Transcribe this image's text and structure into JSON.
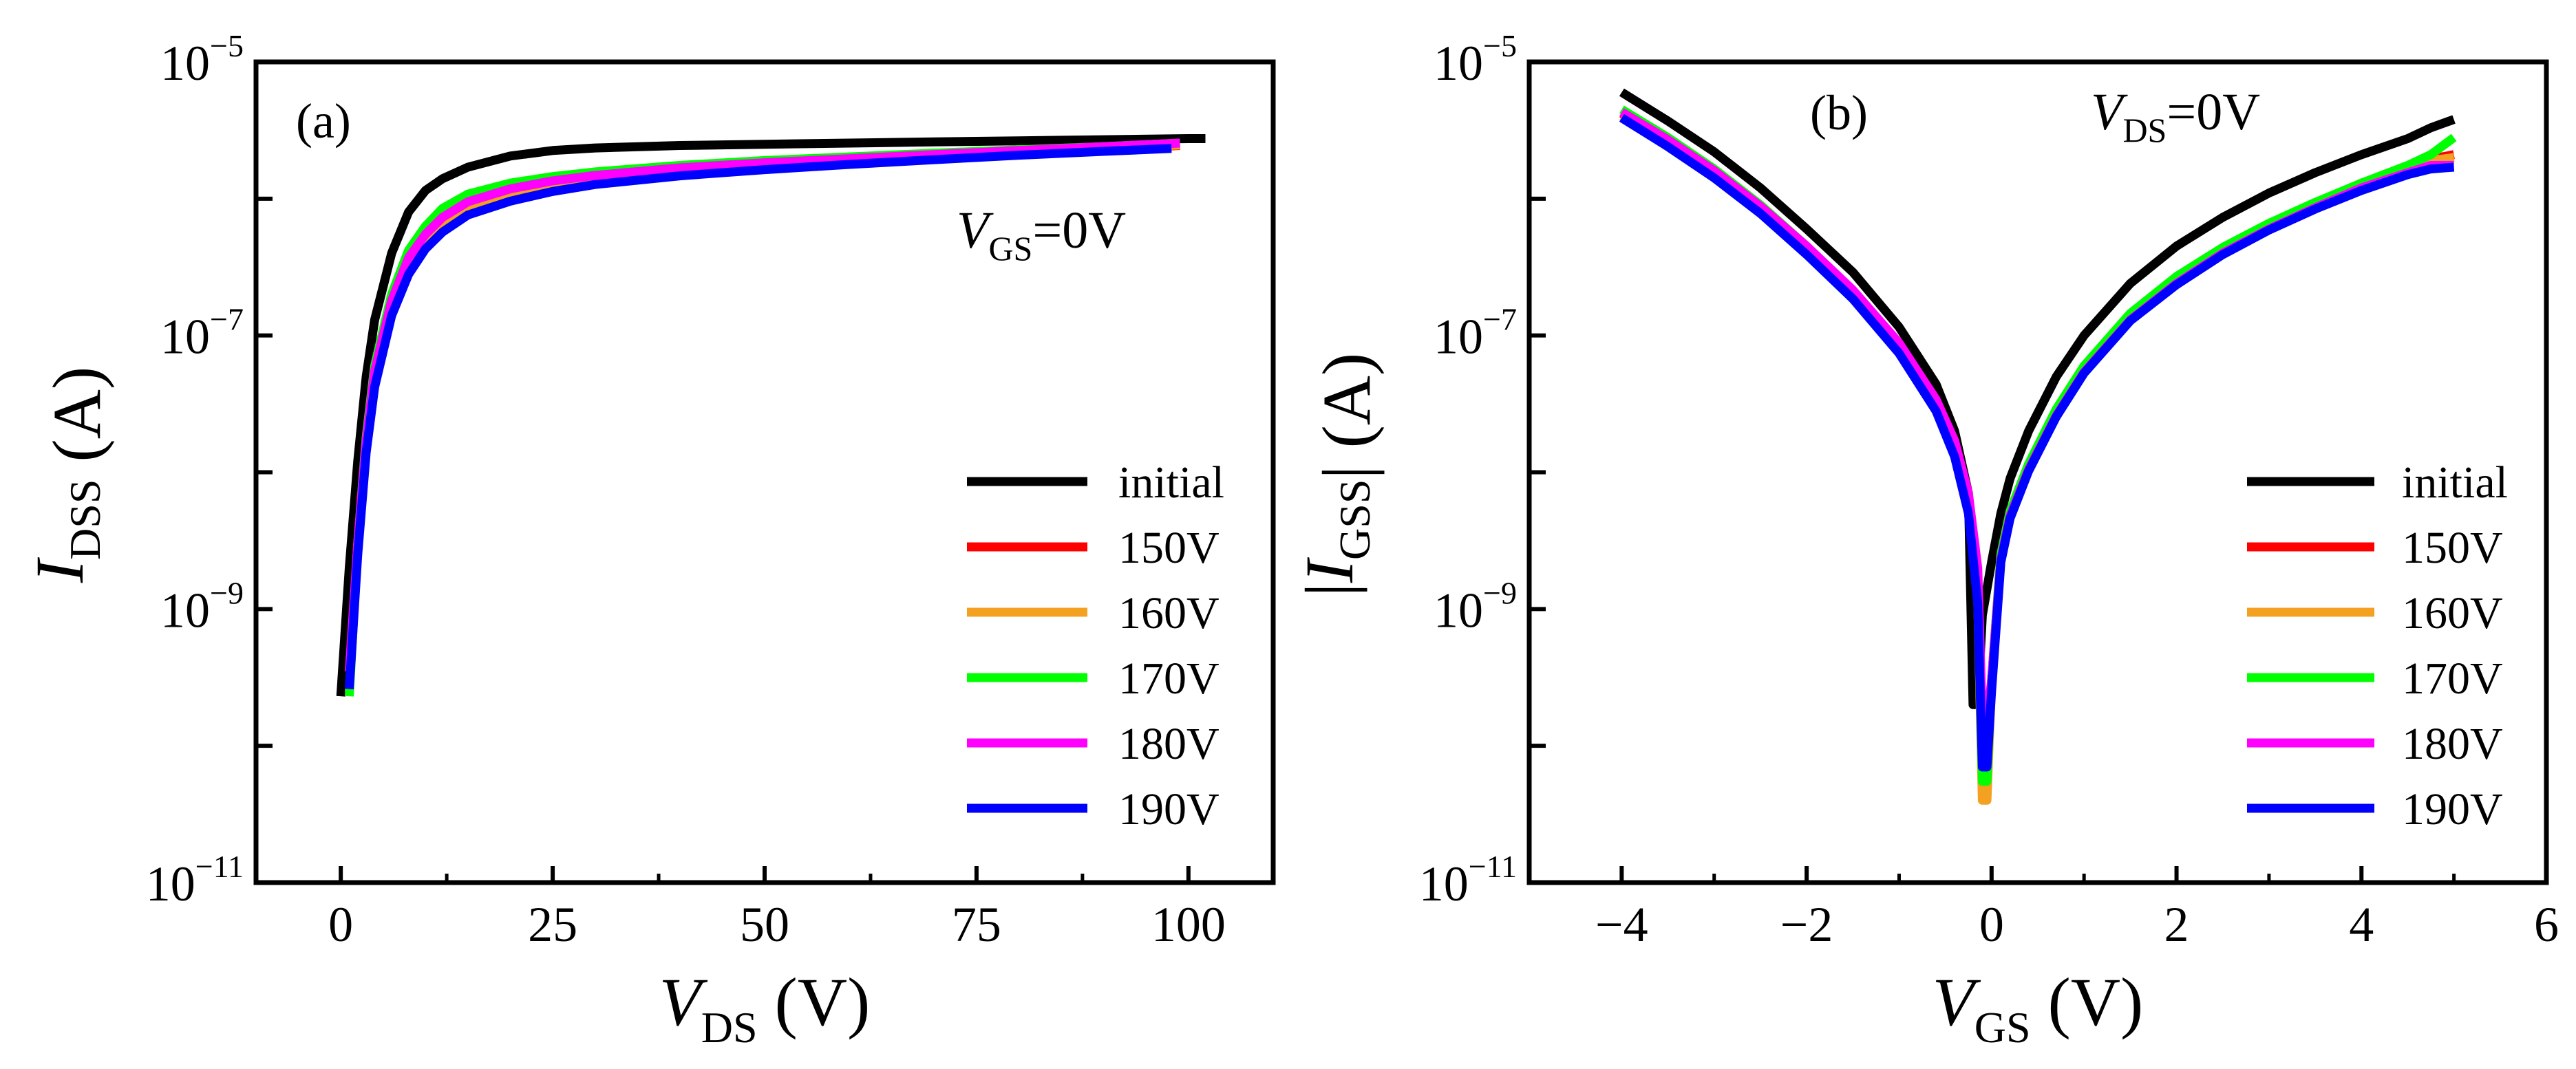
{
  "chart_data": [
    {
      "panel_label": "(a)",
      "type": "line",
      "title": "",
      "xlabel": {
        "symbol": "V",
        "sub": "DS",
        "unit": " (V)"
      },
      "ylabel": {
        "symbol": "I",
        "sub": "DSS",
        "unit": " (A)"
      },
      "condition": {
        "symbol": "V",
        "sub": "GS",
        "value": "=0V"
      },
      "xlim": [
        -10,
        110
      ],
      "ylim_log10": [
        -11,
        -5
      ],
      "yscale": "log",
      "xticks": [
        0,
        25,
        50,
        75,
        100
      ],
      "xtick_labels": [
        "0",
        "25",
        "50",
        "75",
        "100"
      ],
      "yticks": [
        {
          "value": 1e-11,
          "base": "10",
          "exp": "−11"
        },
        {
          "value": 1e-09,
          "base": "10",
          "exp": "−9"
        },
        {
          "value": 1e-07,
          "base": "10",
          "exp": "−7"
        },
        {
          "value": 1e-05,
          "base": "10",
          "exp": "−5"
        }
      ],
      "legend_position": "bottom-right",
      "series": [
        {
          "name": "initial",
          "color": "#000000",
          "x": [
            0,
            1,
            2,
            3,
            4,
            6,
            8,
            10,
            12,
            15,
            20,
            25,
            30,
            40,
            50,
            60,
            70,
            80,
            90,
            100,
            102
          ],
          "y": [
            2.3e-10,
            2e-09,
            1.2e-08,
            5e-08,
            1.3e-07,
            4e-07,
            8e-07,
            1.15e-06,
            1.4e-06,
            1.7e-06,
            2.05e-06,
            2.25e-06,
            2.35e-06,
            2.45e-06,
            2.5e-06,
            2.55e-06,
            2.6e-06,
            2.65e-06,
            2.7e-06,
            2.75e-06,
            2.75e-06
          ]
        },
        {
          "name": "150V",
          "color": "#ff0000",
          "x": [
            1,
            2,
            3,
            4,
            6,
            8,
            10,
            12,
            15,
            20,
            25,
            30,
            40,
            50,
            60,
            70,
            80,
            90,
            99
          ],
          "y": [
            2.5e-10,
            3e-09,
            1.5e-08,
            4.5e-08,
            1.5e-07,
            3e-07,
            4.5e-07,
            6e-07,
            8e-07,
            1.02e-06,
            1.2e-06,
            1.35e-06,
            1.55e-06,
            1.7e-06,
            1.85e-06,
            2e-06,
            2.15e-06,
            2.3e-06,
            2.45e-06
          ]
        },
        {
          "name": "160V",
          "color": "#f4a020",
          "x": [
            1,
            2,
            3,
            4,
            6,
            8,
            10,
            12,
            15,
            20,
            25,
            30,
            40,
            50,
            60,
            70,
            80,
            90,
            99
          ],
          "y": [
            2.5e-10,
            3e-09,
            1.6e-08,
            5e-08,
            1.6e-07,
            3.2e-07,
            4.8e-07,
            6.3e-07,
            8.4e-07,
            1.07e-06,
            1.24e-06,
            1.38e-06,
            1.58e-06,
            1.73e-06,
            1.88e-06,
            2.03e-06,
            2.18e-06,
            2.33e-06,
            2.47e-06
          ]
        },
        {
          "name": "170V",
          "color": "#00ff00",
          "x": [
            1,
            2,
            3,
            4,
            6,
            8,
            10,
            12,
            15,
            20,
            25,
            30,
            40,
            50,
            60,
            70,
            80,
            90,
            99
          ],
          "y": [
            2.3e-10,
            3e-09,
            1.8e-08,
            6e-08,
            2e-07,
            4.2e-07,
            6.3e-07,
            8.5e-07,
            1.08e-06,
            1.3e-06,
            1.45e-06,
            1.57e-06,
            1.75e-06,
            1.9e-06,
            2.02e-06,
            2.15e-06,
            2.28e-06,
            2.4e-06,
            2.55e-06
          ]
        },
        {
          "name": "180V",
          "color": "#ff00ff",
          "x": [
            1,
            2,
            3,
            4,
            6,
            8,
            10,
            12,
            15,
            20,
            25,
            30,
            40,
            50,
            60,
            70,
            80,
            90,
            99
          ],
          "y": [
            3.5e-10,
            3e-09,
            1.7e-08,
            5.5e-08,
            1.8e-07,
            3.7e-07,
            5.5e-07,
            7.3e-07,
            9.5e-07,
            1.18e-06,
            1.35e-06,
            1.48e-06,
            1.68e-06,
            1.83e-06,
            1.96e-06,
            2.1e-06,
            2.25e-06,
            2.4e-06,
            2.55e-06
          ]
        },
        {
          "name": "190V",
          "color": "#0000ff",
          "x": [
            1,
            2,
            3,
            4,
            6,
            8,
            10,
            12,
            15,
            20,
            25,
            30,
            40,
            50,
            60,
            70,
            80,
            90,
            98
          ],
          "y": [
            2.6e-10,
            2.5e-09,
            1.4e-08,
            4.2e-08,
            1.4e-07,
            2.8e-07,
            4.3e-07,
            5.7e-07,
            7.6e-07,
            9.6e-07,
            1.13e-06,
            1.27e-06,
            1.47e-06,
            1.63e-06,
            1.78e-06,
            1.93e-06,
            2.08e-06,
            2.22e-06,
            2.33e-06
          ]
        }
      ]
    },
    {
      "panel_label": "(b)",
      "type": "line",
      "title": "",
      "xlabel": {
        "symbol": "V",
        "sub": "GS",
        "unit": " (V)"
      },
      "ylabel": {
        "symbol": "I",
        "sub": "GSS",
        "unit": " (A)",
        "abs": true
      },
      "condition": {
        "symbol": "V",
        "sub": "DS",
        "value": "=0V"
      },
      "xlim": [
        -5,
        6
      ],
      "ylim_log10": [
        -11,
        -5
      ],
      "yscale": "log",
      "xticks": [
        -4,
        -2,
        0,
        2,
        4,
        6
      ],
      "xtick_labels": [
        "−4",
        "−2",
        "0",
        "2",
        "4",
        "6"
      ],
      "yticks": [
        {
          "value": 1e-11,
          "base": "10",
          "exp": "−11"
        },
        {
          "value": 1e-09,
          "base": "10",
          "exp": "−9"
        },
        {
          "value": 1e-07,
          "base": "10",
          "exp": "−7"
        },
        {
          "value": 1e-05,
          "base": "10",
          "exp": "−5"
        }
      ],
      "legend_position": "bottom-right",
      "series": [
        {
          "name": "initial",
          "color": "#000000",
          "x": [
            -4,
            -3.5,
            -3,
            -2.5,
            -2,
            -1.5,
            -1,
            -0.6,
            -0.4,
            -0.25,
            -0.2,
            -0.15,
            -0.1,
            0,
            0.1,
            0.2,
            0.4,
            0.7,
            1,
            1.5,
            2,
            2.5,
            3,
            3.5,
            4,
            4.5,
            4.75,
            5
          ],
          "y": [
            6e-06,
            3.7e-06,
            2.2e-06,
            1.2e-06,
            6e-07,
            2.9e-07,
            1.15e-07,
            4.4e-08,
            2e-08,
            7e-09,
            2e-10,
            2e-10,
            9e-10,
            2.2e-09,
            5e-09,
            9e-09,
            2e-08,
            5e-08,
            1e-07,
            2.4e-07,
            4.5e-07,
            7.3e-07,
            1.1e-06,
            1.55e-06,
            2.1e-06,
            2.75e-06,
            3.3e-06,
            3.8e-06
          ]
        },
        {
          "name": "150V",
          "color": "#ff0000",
          "x": [
            -4,
            -3.5,
            -3,
            -2.5,
            -2,
            -1.5,
            -1,
            -0.6,
            -0.4,
            -0.25,
            -0.15,
            -0.1,
            -0.05,
            0,
            0.1,
            0.2,
            0.4,
            0.7,
            1,
            1.5,
            2,
            2.5,
            3,
            3.5,
            4,
            4.5,
            4.75,
            5
          ],
          "y": [
            4.2e-06,
            2.6e-06,
            1.55e-06,
            8.5e-07,
            4.3e-07,
            2e-07,
            8e-08,
            3e-08,
            1.4e-08,
            5.5e-09,
            1.2e-09,
            8e-11,
            8e-11,
            3e-10,
            2.4e-09,
            5e-09,
            1.1e-08,
            2.8e-08,
            5.8e-08,
            1.4e-07,
            2.6e-07,
            4.3e-07,
            6.5e-07,
            9.3e-07,
            1.3e-06,
            1.7e-06,
            1.95e-06,
            2.1e-06
          ]
        },
        {
          "name": "160V",
          "color": "#f4a020",
          "x": [
            -4,
            -3.5,
            -3,
            -2.5,
            -2,
            -1.5,
            -1,
            -0.6,
            -0.4,
            -0.25,
            -0.15,
            -0.1,
            -0.05,
            0,
            0.1,
            0.2,
            0.4,
            0.7,
            1,
            1.5,
            2,
            2.5,
            3,
            3.5,
            4,
            4.5,
            4.75,
            5
          ],
          "y": [
            4e-06,
            2.5e-06,
            1.5e-06,
            8.2e-07,
            4.1e-07,
            1.95e-07,
            7.8e-08,
            2.9e-08,
            1.35e-08,
            5.3e-09,
            1.2e-09,
            4e-11,
            4e-11,
            3e-10,
            2.3e-09,
            4.9e-09,
            1.08e-08,
            2.7e-08,
            5.6e-08,
            1.35e-07,
            2.5e-07,
            4.2e-07,
            6.3e-07,
            9e-07,
            1.25e-06,
            1.65e-06,
            1.9e-06,
            2e-06
          ]
        },
        {
          "name": "170V",
          "color": "#00ff00",
          "x": [
            -4,
            -3.5,
            -3,
            -2.5,
            -2,
            -1.5,
            -1,
            -0.6,
            -0.4,
            -0.25,
            -0.15,
            -0.1,
            -0.05,
            0,
            0.1,
            0.2,
            0.4,
            0.7,
            1,
            1.5,
            2,
            2.5,
            3,
            3.5,
            4,
            4.5,
            4.75,
            5
          ],
          "y": [
            4.5e-06,
            2.8e-06,
            1.65e-06,
            9e-07,
            4.5e-07,
            2.1e-07,
            8.3e-08,
            3.1e-08,
            1.45e-08,
            5.7e-09,
            1.3e-09,
            5.5e-11,
            5.5e-11,
            3e-10,
            2.5e-09,
            5.2e-09,
            1.15e-08,
            2.9e-08,
            6e-08,
            1.45e-07,
            2.7e-07,
            4.4e-07,
            6.6e-07,
            9.4e-07,
            1.3e-06,
            1.75e-06,
            2.1e-06,
            2.8e-06
          ]
        },
        {
          "name": "180V",
          "color": "#ff00ff",
          "x": [
            -4,
            -3.5,
            -3,
            -2.5,
            -2,
            -1.5,
            -1,
            -0.6,
            -0.4,
            -0.25,
            -0.15,
            -0.1,
            -0.05,
            0,
            0.1,
            0.2,
            0.4,
            0.7,
            1,
            1.5,
            2,
            2.5,
            3,
            3.5,
            4,
            4.5,
            4.75,
            5
          ],
          "y": [
            4.3e-06,
            2.7e-06,
            1.6e-06,
            8.8e-07,
            4.5e-07,
            2.15e-07,
            8.8e-08,
            3.4e-08,
            1.7e-08,
            7e-09,
            2e-09,
            1.5e-10,
            1.5e-10,
            3e-10,
            2.3e-09,
            4.8e-09,
            1.05e-08,
            2.6e-08,
            5.4e-08,
            1.3e-07,
            2.4e-07,
            4e-07,
            6e-07,
            8.6e-07,
            1.2e-06,
            1.55e-06,
            1.75e-06,
            1.75e-06
          ]
        },
        {
          "name": "190V",
          "color": "#0000ff",
          "x": [
            -4,
            -3.5,
            -3,
            -2.5,
            -2,
            -1.5,
            -1,
            -0.6,
            -0.4,
            -0.25,
            -0.15,
            -0.1,
            -0.05,
            0,
            0.1,
            0.2,
            0.4,
            0.7,
            1,
            1.5,
            2,
            2.5,
            3,
            3.5,
            4,
            4.5,
            4.75,
            5
          ],
          "y": [
            3.9e-06,
            2.4e-06,
            1.42e-06,
            7.8e-07,
            3.9e-07,
            1.85e-07,
            7.4e-08,
            2.8e-08,
            1.3e-08,
            5e-09,
            1.1e-09,
            7e-11,
            7e-11,
            2.5e-10,
            2.2e-09,
            4.6e-09,
            1.02e-08,
            2.55e-08,
            5.3e-08,
            1.28e-07,
            2.35e-07,
            3.9e-07,
            5.9e-07,
            8.4e-07,
            1.15e-06,
            1.5e-06,
            1.65e-06,
            1.7e-06
          ]
        }
      ]
    }
  ]
}
